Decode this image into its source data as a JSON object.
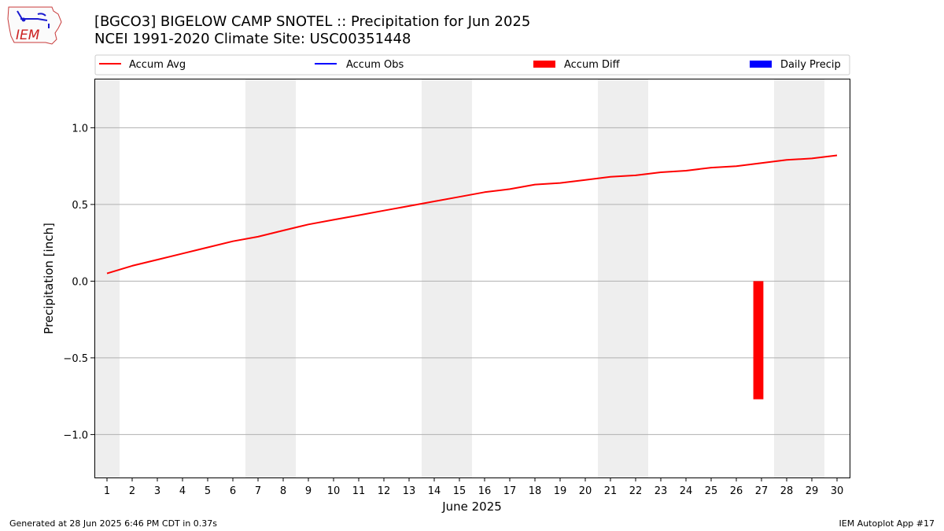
{
  "title_line1": "[BGCO3] BIGELOW CAMP SNOTEL :: Precipitation for Jun 2025",
  "title_line2": "NCEI 1991-2020 Climate Site: USC00351448",
  "logo_text": "IEM",
  "footer_left": "Generated at 28 Jun 2025 6:46 PM CDT in 0.37s",
  "footer_right": "IEM Autoplot App #17",
  "colors": {
    "accum_avg": "#ff0000",
    "accum_obs": "#0000ff",
    "accum_diff": "#ff0000",
    "daily_precip": "#0000ff",
    "weekend_shade": "#eeeeee",
    "grid": "#b0b0b0"
  },
  "chart_data": {
    "type": "line",
    "xlabel": "June 2025",
    "ylabel": "Precipitation [inch]",
    "xlim": [
      0.5,
      30.5
    ],
    "ylim": [
      -1.28,
      1.32
    ],
    "yticks": [
      -1.0,
      -0.5,
      0.0,
      0.5,
      1.0
    ],
    "ytick_labels": [
      "−1.0",
      "−0.5",
      "0.0",
      "0.5",
      "1.0"
    ],
    "x": [
      1,
      2,
      3,
      4,
      5,
      6,
      7,
      8,
      9,
      10,
      11,
      12,
      13,
      14,
      15,
      16,
      17,
      18,
      19,
      20,
      21,
      22,
      23,
      24,
      25,
      26,
      27,
      28,
      29,
      30
    ],
    "grid": "horizontal",
    "weekend_days": [
      1,
      7,
      8,
      14,
      15,
      21,
      22,
      28,
      29
    ],
    "legend": {
      "placement": "top",
      "entries": [
        {
          "label": "Accum Avg",
          "kind": "line",
          "color_key": "accum_avg"
        },
        {
          "label": "Accum Obs",
          "kind": "line",
          "color_key": "accum_obs"
        },
        {
          "label": "Accum Diff",
          "kind": "bar",
          "color_key": "accum_diff"
        },
        {
          "label": "Daily Precip",
          "kind": "bar",
          "color_key": "daily_precip"
        }
      ]
    },
    "series": [
      {
        "name": "Accum Avg",
        "type": "line",
        "values": [
          0.05,
          0.1,
          0.14,
          0.18,
          0.22,
          0.26,
          0.29,
          0.33,
          0.37,
          0.4,
          0.43,
          0.46,
          0.49,
          0.52,
          0.55,
          0.58,
          0.6,
          0.63,
          0.64,
          0.66,
          0.68,
          0.69,
          0.71,
          0.72,
          0.74,
          0.75,
          0.77,
          0.79,
          0.8,
          0.82
        ]
      },
      {
        "name": "Accum Diff",
        "type": "bar",
        "points": [
          {
            "x": 27,
            "value": -0.77
          }
        ]
      }
    ]
  }
}
